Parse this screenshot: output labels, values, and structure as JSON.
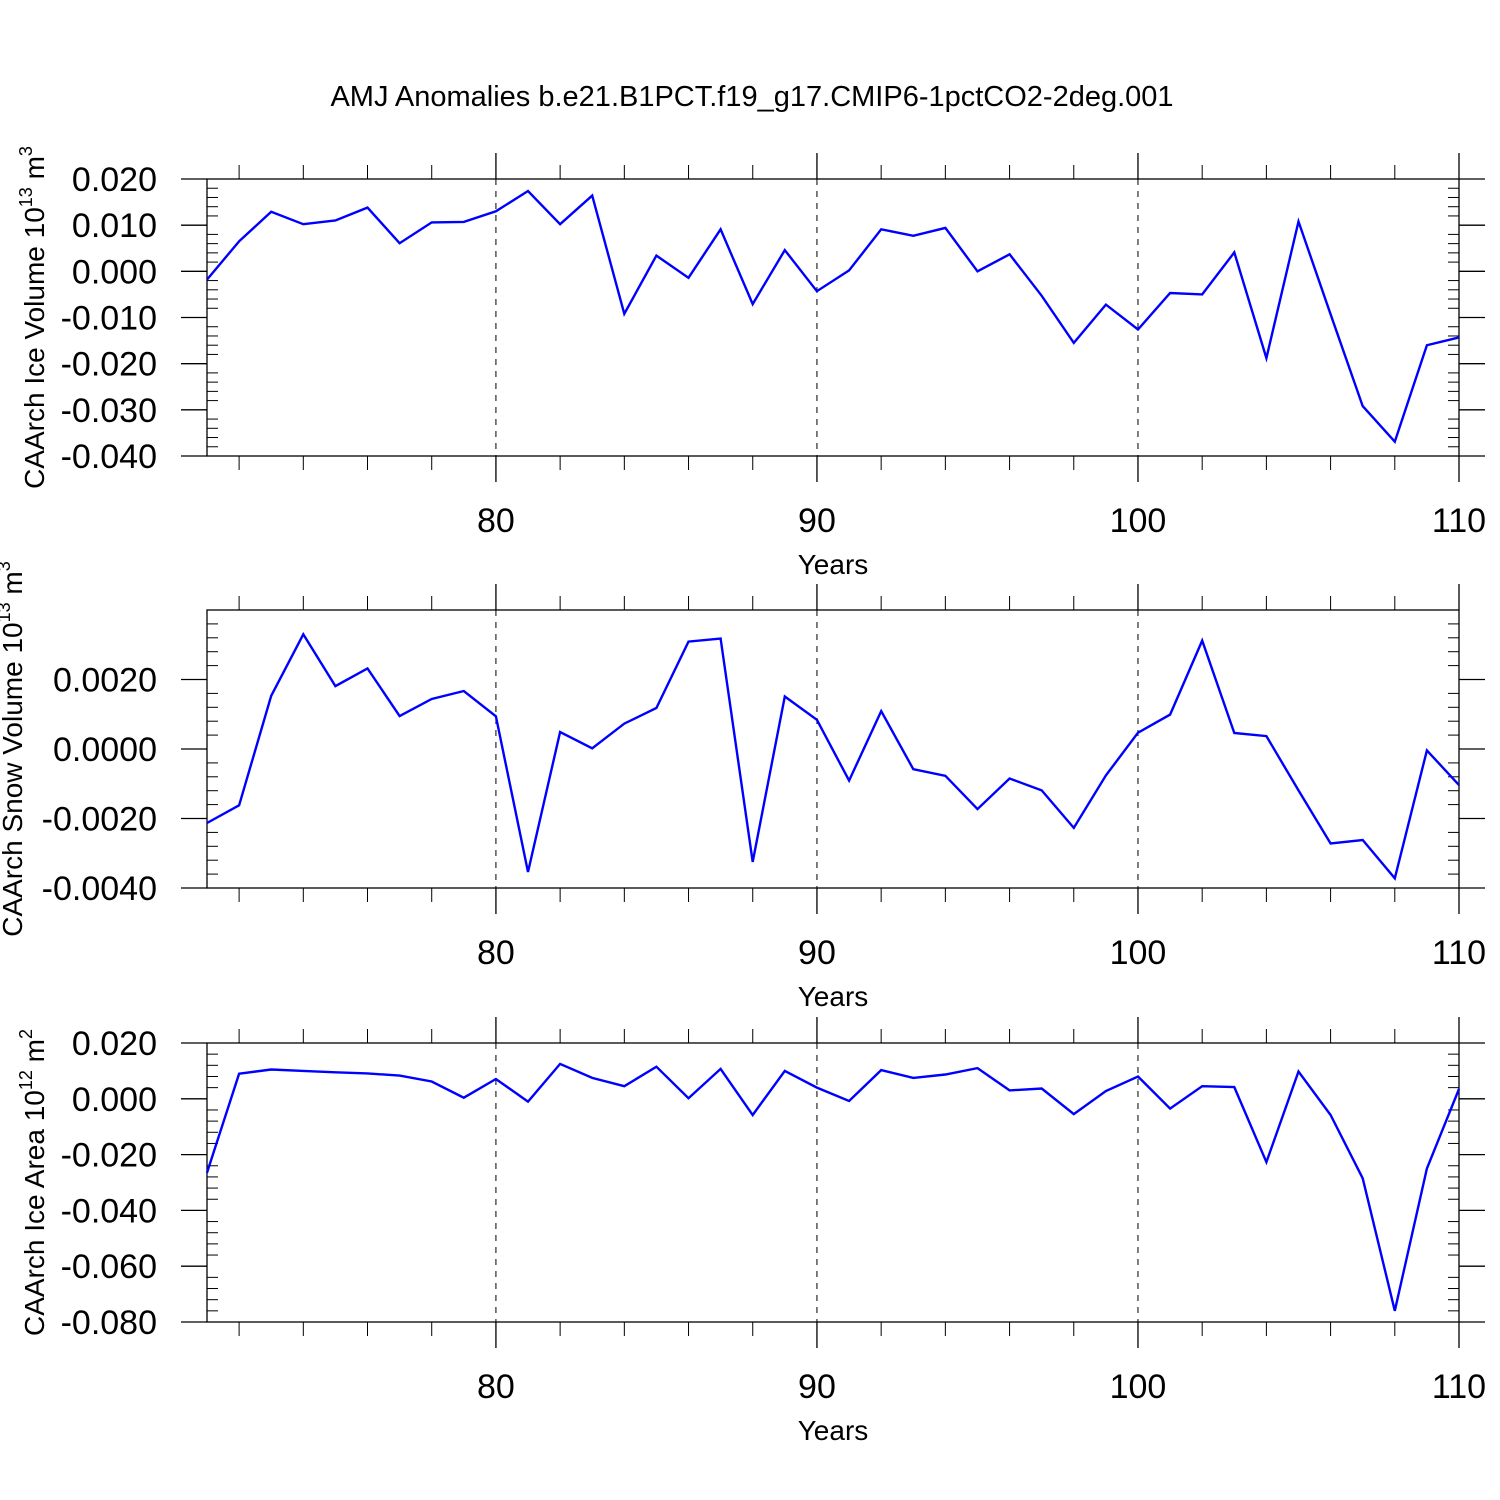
{
  "title": "AMJ Anomalies b.e21.B1PCT.f19_g17.CMIP6-1pctCO2-2deg.001",
  "colors": {
    "line": "#0000ff",
    "axis": "#000000",
    "grid": "#000000"
  },
  "chart_data": [
    {
      "type": "line",
      "ylabel": "CAArch Ice Volume",
      "yunit_base": "10",
      "yunit_exp": "13",
      "yunit_tail": "m",
      "yunit_tail_exp": "3",
      "xlabel": "Years",
      "xlim": [
        71,
        110
      ],
      "ylim": [
        -0.04,
        0.02
      ],
      "xticks": [
        80,
        90,
        100,
        110
      ],
      "xtick_labels": [
        "80",
        "90",
        "100",
        "110"
      ],
      "yticks": [
        -0.04,
        -0.03,
        -0.02,
        -0.01,
        0.0,
        0.01,
        0.02
      ],
      "ytick_labels": [
        "-0.040",
        "-0.030",
        "-0.020",
        "-0.010",
        "0.000",
        "0.010",
        "0.020"
      ],
      "grid_x": [
        80,
        90,
        100
      ],
      "x": [
        71,
        72,
        73,
        74,
        75,
        76,
        77,
        78,
        79,
        80,
        81,
        82,
        83,
        84,
        85,
        86,
        87,
        88,
        89,
        90,
        91,
        92,
        93,
        94,
        95,
        96,
        97,
        98,
        99,
        100,
        101,
        102,
        103,
        104,
        105,
        106,
        107,
        108,
        109,
        110
      ],
      "series": [
        {
          "values": [
            -0.0018,
            0.0065,
            0.0129,
            0.0102,
            0.011,
            0.0138,
            0.0061,
            0.0106,
            0.0107,
            0.013,
            0.0174,
            0.0102,
            0.0164,
            -0.0092,
            0.0034,
            -0.0014,
            0.0091,
            -0.0071,
            0.0046,
            -0.0043,
            0.0002,
            0.0091,
            0.0077,
            0.0094,
            0.0,
            0.0037,
            -0.0053,
            -0.0155,
            -0.0072,
            -0.0126,
            -0.0047,
            -0.005,
            0.0041,
            -0.0188,
            0.0108,
            -0.0093,
            -0.0292,
            -0.0369,
            -0.016,
            -0.0143
          ]
        }
      ]
    },
    {
      "type": "line",
      "ylabel": "CAArch Snow Volume",
      "yunit_base": "10",
      "yunit_exp": "13",
      "yunit_tail": "m",
      "yunit_tail_exp": "3",
      "xlabel": "Years",
      "xlim": [
        71,
        110
      ],
      "ylim": [
        -0.004,
        0.004
      ],
      "xticks": [
        80,
        90,
        100,
        110
      ],
      "xtick_labels": [
        "80",
        "90",
        "100",
        "110"
      ],
      "yticks": [
        -0.004,
        -0.002,
        0.0,
        0.002
      ],
      "ytick_labels": [
        "-0.0040",
        "-0.0020",
        "0.0000",
        "0.0020"
      ],
      "grid_x": [
        80,
        90,
        100
      ],
      "x": [
        71,
        72,
        73,
        74,
        75,
        76,
        77,
        78,
        79,
        80,
        81,
        82,
        83,
        84,
        85,
        86,
        87,
        88,
        89,
        90,
        91,
        92,
        93,
        94,
        95,
        96,
        97,
        98,
        99,
        100,
        101,
        102,
        103,
        104,
        105,
        106,
        107,
        108,
        109,
        110
      ],
      "series": [
        {
          "values": [
            -0.00213,
            -0.00162,
            0.00153,
            0.0033,
            0.00181,
            0.00232,
            0.00095,
            0.00144,
            0.00167,
            0.00094,
            -0.00354,
            0.00049,
            2e-05,
            0.00073,
            0.00118,
            0.00309,
            0.00318,
            -0.00325,
            0.00151,
            0.00084,
            -0.00091,
            0.00109,
            -0.00058,
            -0.00077,
            -0.00173,
            -0.00085,
            -0.00119,
            -0.00227,
            -0.00076,
            0.00047,
            0.00099,
            0.00312,
            0.00046,
            0.00037,
            -0.00119,
            -0.00272,
            -0.00262,
            -0.00372,
            -4e-05,
            -0.00104
          ]
        }
      ]
    },
    {
      "type": "line",
      "ylabel": "CAArch Ice Area",
      "yunit_base": "10",
      "yunit_exp": "12",
      "yunit_tail": "m",
      "yunit_tail_exp": "2",
      "xlabel": "Years",
      "xlim": [
        71,
        110
      ],
      "ylim": [
        -0.08,
        0.02
      ],
      "xticks": [
        80,
        90,
        100,
        110
      ],
      "xtick_labels": [
        "80",
        "90",
        "100",
        "110"
      ],
      "yticks": [
        -0.08,
        -0.06,
        -0.04,
        -0.02,
        0.0,
        0.02
      ],
      "ytick_labels": [
        "-0.080",
        "-0.060",
        "-0.040",
        "-0.020",
        "0.000",
        "0.020"
      ],
      "grid_x": [
        80,
        90,
        100
      ],
      "x": [
        71,
        72,
        73,
        74,
        75,
        76,
        77,
        78,
        79,
        80,
        81,
        82,
        83,
        84,
        85,
        86,
        87,
        88,
        89,
        90,
        91,
        92,
        93,
        94,
        95,
        96,
        97,
        98,
        99,
        100,
        101,
        102,
        103,
        104,
        105,
        106,
        107,
        108,
        109,
        110
      ],
      "series": [
        {
          "values": [
            -0.0265,
            0.009,
            0.0105,
            0.01,
            0.0095,
            0.0091,
            0.0083,
            0.0062,
            0.0004,
            0.0071,
            -0.001,
            0.0125,
            0.0075,
            0.0045,
            0.0115,
            0.0002,
            0.0107,
            -0.0058,
            0.01,
            0.004,
            -0.0008,
            0.0103,
            0.0075,
            0.0087,
            0.011,
            0.003,
            0.0037,
            -0.0055,
            0.0028,
            0.008,
            -0.0035,
            0.0045,
            0.0042,
            -0.0227,
            0.0098,
            -0.0058,
            -0.0285,
            -0.076,
            -0.025,
            0.0035
          ]
        }
      ]
    }
  ]
}
